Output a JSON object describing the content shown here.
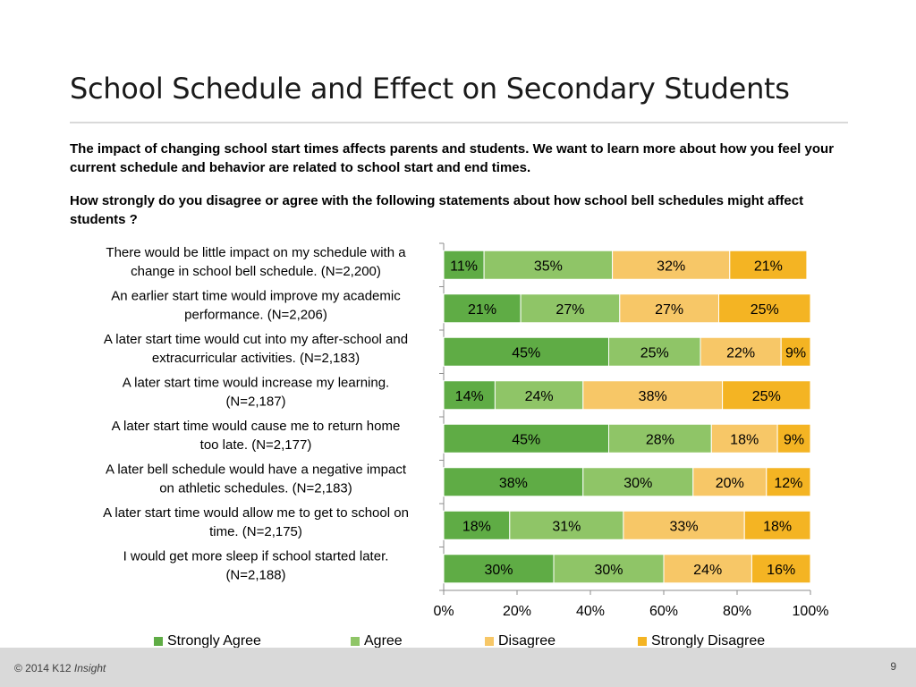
{
  "slide": {
    "title": "School Schedule and Effect on Secondary Students",
    "intro": "The impact of changing school start times affects parents and students. We want to learn more about how you feel your current schedule and behavior are related to school start and end times.",
    "question": "How strongly do you disagree or agree with the following statements about how school bell schedules might affect students ?"
  },
  "footer": {
    "copyright": "© 2014 K12 ",
    "brand": "Insight",
    "page_number": "9"
  },
  "colors": {
    "strongly_agree": "#5fac45",
    "agree": "#8fc567",
    "disagree": "#f7c767",
    "strongly_disagree": "#f4b423"
  },
  "chart_data": {
    "type": "bar",
    "orientation": "horizontal",
    "stacked": true,
    "categories": [
      [
        "There would be little impact on my schedule with a",
        "change in school bell schedule. (N=2,200)"
      ],
      [
        "An earlier start time would improve my academic",
        "performance. (N=2,206)"
      ],
      [
        "A later start time would cut into my after-school and",
        "extracurricular activities. (N=2,183)"
      ],
      [
        "A later start time would increase my learning.",
        "(N=2,187)"
      ],
      [
        "A later start time would cause me to return home",
        "too late. (N=2,177)"
      ],
      [
        "A later bell schedule would have a negative impact",
        "on athletic schedules. (N=2,183)"
      ],
      [
        "A later start time would allow me to get to school on",
        "time. (N=2,175)"
      ],
      [
        "I would get more sleep if school started later.",
        "(N=2,188)"
      ]
    ],
    "series": [
      {
        "name": "Strongly Agree",
        "color": "#5fac45",
        "values": [
          11,
          21,
          45,
          14,
          45,
          38,
          18,
          30
        ]
      },
      {
        "name": "Agree",
        "color": "#8fc567",
        "values": [
          35,
          27,
          25,
          24,
          28,
          30,
          31,
          30
        ]
      },
      {
        "name": "Disagree",
        "color": "#f7c767",
        "values": [
          32,
          27,
          22,
          38,
          18,
          20,
          33,
          24
        ]
      },
      {
        "name": "Strongly Disagree",
        "color": "#f4b423",
        "values": [
          21,
          25,
          9,
          25,
          9,
          12,
          18,
          16
        ]
      }
    ],
    "x_ticks": [
      "0%",
      "20%",
      "40%",
      "60%",
      "80%",
      "100%"
    ],
    "xlim": [
      0,
      100
    ],
    "value_suffix": "%",
    "legend_position": "bottom",
    "grid": false
  }
}
